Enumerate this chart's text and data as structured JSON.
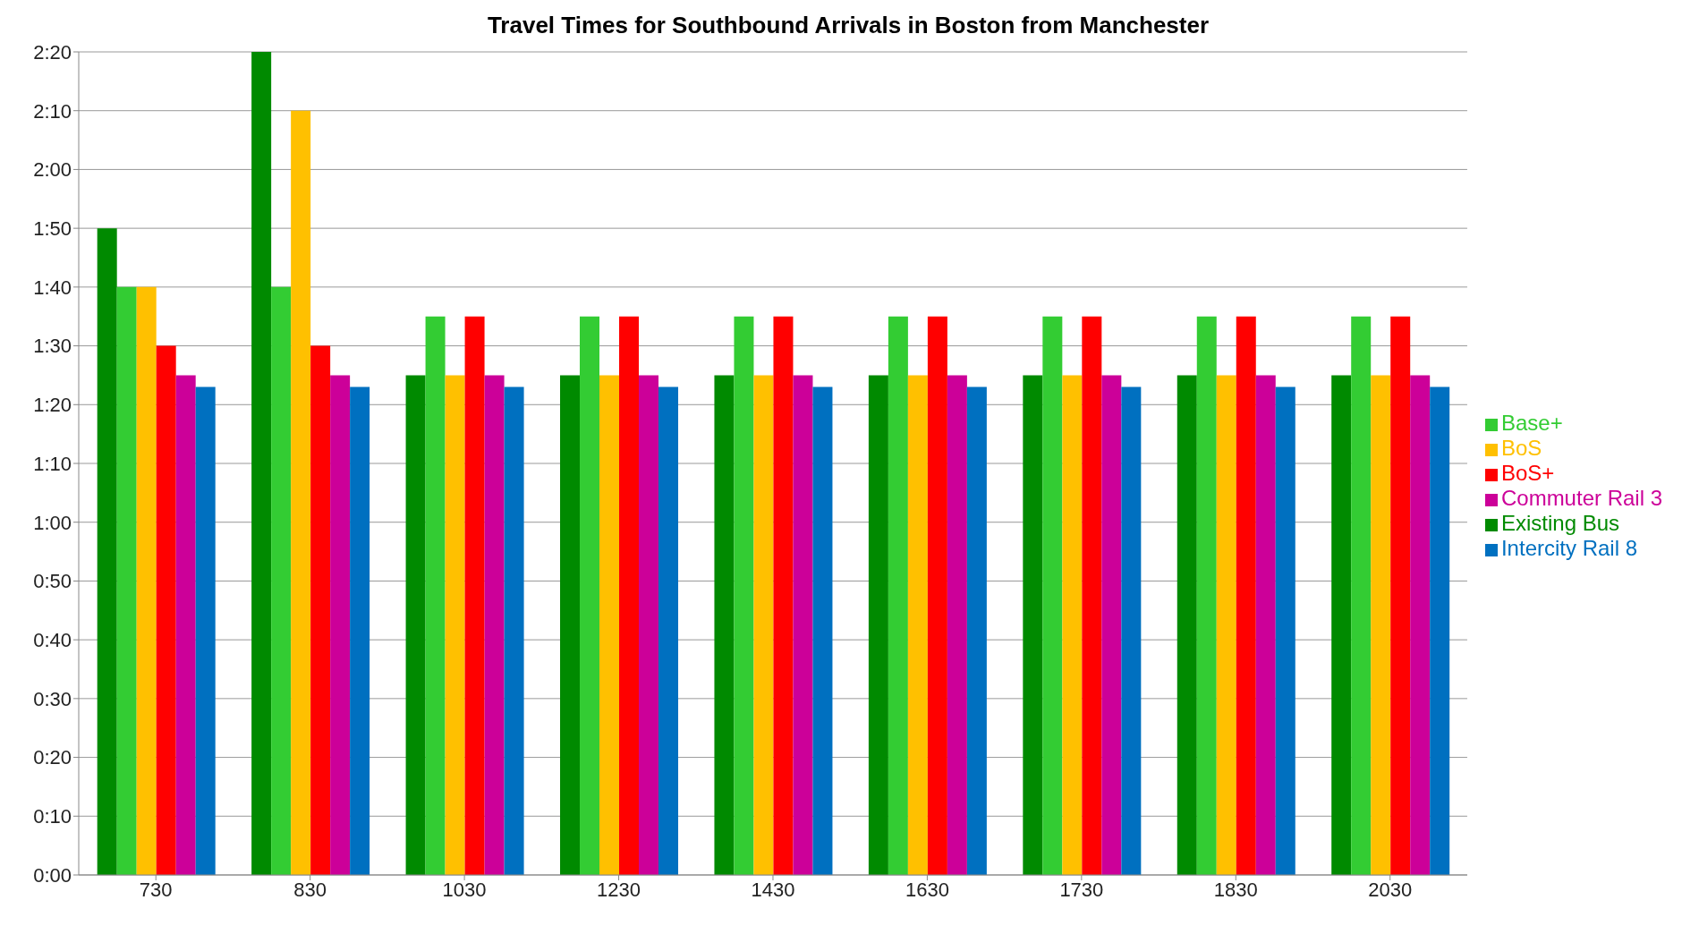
{
  "chart_data": {
    "type": "bar",
    "title": "Travel Times for Southbound Arrivals in Boston from Manchester",
    "categories": [
      "730",
      "830",
      "1030",
      "1230",
      "1430",
      "1630",
      "1730",
      "1830",
      "2030"
    ],
    "series": [
      {
        "name": "Existing Bus",
        "color": "#008a00",
        "values": [
          110,
          140,
          85,
          85,
          85,
          85,
          85,
          85,
          85
        ]
      },
      {
        "name": "Base+",
        "color": "#33cc33",
        "values": [
          100,
          100,
          95,
          95,
          95,
          95,
          95,
          95,
          95
        ]
      },
      {
        "name": "BoS",
        "color": "#ffc000",
        "values": [
          100,
          130,
          85,
          85,
          85,
          85,
          85,
          85,
          85
        ]
      },
      {
        "name": "BoS+",
        "color": "#ff0000",
        "values": [
          90,
          90,
          95,
          95,
          95,
          95,
          95,
          95,
          95
        ]
      },
      {
        "name": "Commuter Rail 3",
        "color": "#cc0099",
        "values": [
          85,
          85,
          85,
          85,
          85,
          85,
          85,
          85,
          85
        ]
      },
      {
        "name": "Intercity Rail 8",
        "color": "#0070c0",
        "values": [
          83,
          83,
          83,
          83,
          83,
          83,
          83,
          83,
          83
        ]
      }
    ],
    "ylim": [
      0,
      140
    ],
    "yticks": [
      {
        "value": 0,
        "label": "0:00"
      },
      {
        "value": 10,
        "label": "0:10"
      },
      {
        "value": 20,
        "label": "0:20"
      },
      {
        "value": 30,
        "label": "0:30"
      },
      {
        "value": 40,
        "label": "0:40"
      },
      {
        "value": 50,
        "label": "0:50"
      },
      {
        "value": 60,
        "label": "1:00"
      },
      {
        "value": 70,
        "label": "1:10"
      },
      {
        "value": 80,
        "label": "1:20"
      },
      {
        "value": 90,
        "label": "1:30"
      },
      {
        "value": 100,
        "label": "1:40"
      },
      {
        "value": 110,
        "label": "1:50"
      },
      {
        "value": 120,
        "label": "2:00"
      },
      {
        "value": 130,
        "label": "2:10"
      },
      {
        "value": 140,
        "label": "2:20"
      }
    ],
    "grid": "y",
    "legend": "right"
  }
}
